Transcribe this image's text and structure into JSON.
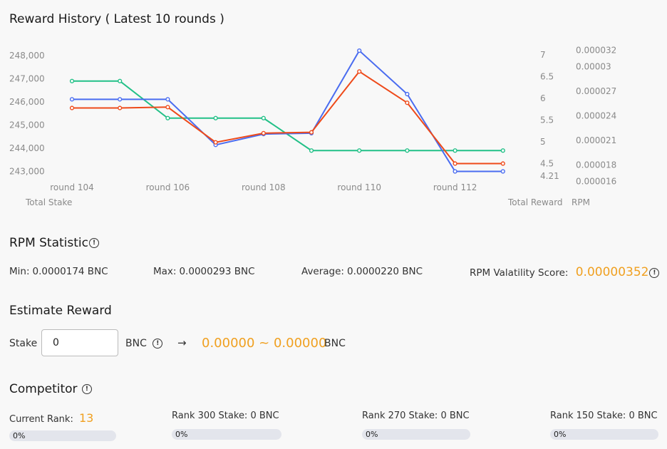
{
  "title": "Reward History ( Latest 10 rounds )",
  "chart_data": {
    "type": "line",
    "x": [
      "round 104",
      "round 105",
      "round 106",
      "round 107",
      "round 108",
      "round 109",
      "round 110",
      "round 111",
      "round 112",
      "round 113"
    ],
    "x_tick_labels": [
      "round 104",
      "round 106",
      "round 108",
      "round 110",
      "round 112"
    ],
    "left_axis": {
      "label": "Total Stake",
      "ticks": [
        "248,000",
        "247,000",
        "246,000",
        "245,000",
        "244,000",
        "243,000"
      ],
      "range": [
        242400,
        248400
      ]
    },
    "mid_axis": {
      "label": "Total Reward",
      "ticks": [
        "7",
        "6.5",
        "6",
        "5.5",
        "5",
        "4.5",
        "4.21"
      ],
      "range": [
        4.0,
        7.2
      ]
    },
    "right_axis": {
      "label": "RPM",
      "ticks": [
        "0.000032",
        "0.00003",
        "0.000027",
        "0.000024",
        "0.000021",
        "0.000018",
        "0.000016"
      ],
      "range": [
        1.55e-05,
        3.25e-05
      ]
    },
    "series": [
      {
        "color": "#22c087",
        "axis": "left",
        "values": [
          246900,
          246900,
          245300,
          245300,
          245300,
          243900,
          243900,
          243900,
          243900,
          243900
        ]
      },
      {
        "color": "#4a6cf0",
        "axis": "mid",
        "values": [
          5.98,
          5.98,
          5.98,
          4.93,
          5.18,
          5.2,
          7.1,
          6.1,
          4.32,
          4.32
        ]
      },
      {
        "color": "#ee4a1a",
        "axis": "mid",
        "values": [
          5.78,
          5.78,
          5.8,
          4.99,
          5.2,
          5.22,
          6.62,
          5.9,
          4.5,
          4.5
        ]
      }
    ],
    "grid": false
  },
  "rpm": {
    "title": "RPM Statistic",
    "min_label": "Min:",
    "min_value": "0.0000174 BNC",
    "max_label": "Max:",
    "max_value": "0.0000293 BNC",
    "avg_label": "Average:",
    "avg_value": "0.0000220 BNC",
    "vol_label": "RPM Valatility Score:",
    "vol_value": "0.00000352"
  },
  "estimate": {
    "title": "Estimate Reward",
    "stake_label": "Stake",
    "stake_value": "0",
    "unit": "BNC",
    "arrow": "→",
    "result": "0.00000 ~ 0.00000",
    "result_unit": "BNC"
  },
  "competitor": {
    "title": "Competitor",
    "current_rank_label": "Current Rank:",
    "current_rank": "13",
    "ranks": [
      {
        "label": "Current Rank:",
        "progress_text": "0%",
        "progress": 0
      },
      {
        "label": "Rank 300 Stake:",
        "value": "0 BNC",
        "progress_text": "0%",
        "progress": 0
      },
      {
        "label": "Rank 270 Stake:",
        "value": "0 BNC",
        "progress_text": "0%",
        "progress": 0
      },
      {
        "label": "Rank 150 Stake:",
        "value": "0 BNC",
        "progress_text": "0%",
        "progress": 0
      }
    ]
  },
  "colors": {
    "accent": "#f0a020",
    "progress_track": "#e3e5ec"
  },
  "icons": [
    "info-icon",
    "arrow-right-icon"
  ]
}
